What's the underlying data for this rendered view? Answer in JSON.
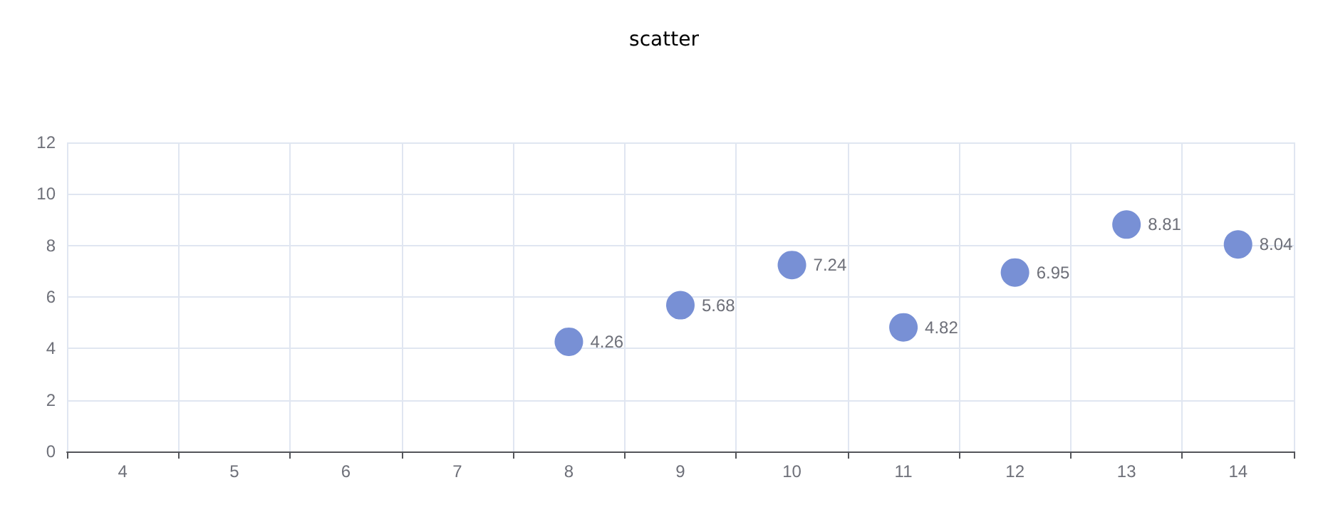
{
  "chart_data": {
    "type": "scatter",
    "title": "scatter",
    "categories": [
      "4",
      "5",
      "6",
      "7",
      "8",
      "9",
      "10",
      "11",
      "12",
      "13",
      "14"
    ],
    "values": [
      null,
      null,
      null,
      null,
      4.26,
      5.68,
      7.24,
      4.82,
      6.95,
      8.81,
      8.04
    ],
    "color": "#7890d5",
    "ylim": [
      0,
      12
    ],
    "yticks": [
      0,
      2,
      4,
      6,
      8,
      10,
      12
    ],
    "grid": true,
    "data_labels": true,
    "marker": "circle"
  }
}
